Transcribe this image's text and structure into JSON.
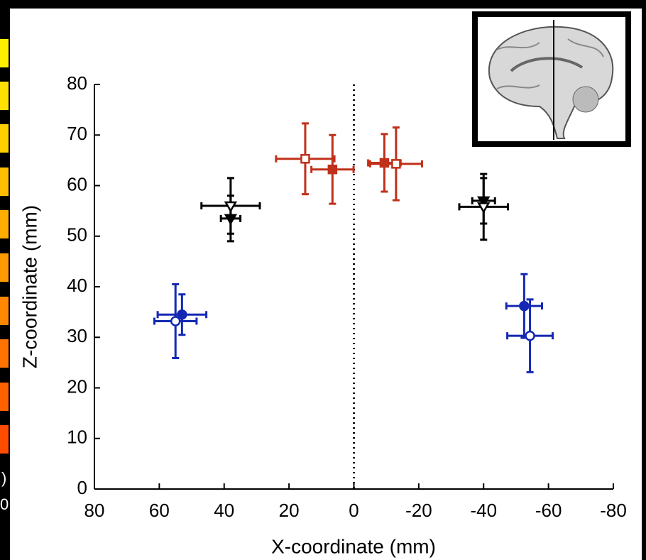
{
  "chart_data": {
    "type": "scatter",
    "x_label": "X-coordinate (mm)",
    "y_label": "Z-coordinate (mm)",
    "xlim": [
      80,
      -80
    ],
    "ylim": [
      0,
      80
    ],
    "xticks": [
      80,
      60,
      40,
      20,
      0,
      -20,
      -40,
      -60,
      -80
    ],
    "yticks": [
      0,
      10,
      20,
      30,
      40,
      50,
      60,
      70,
      80
    ],
    "vline": 0,
    "colorbar_labels": [
      ")",
      "0"
    ],
    "series": [
      {
        "color": "#1428b4",
        "marker": "circle",
        "filled": true,
        "x": [
          53,
          -52.5
        ],
        "values": [
          34.5,
          36.2
        ],
        "xerr": [
          7.5,
          5.5
        ],
        "yerr": [
          4,
          6.3
        ]
      },
      {
        "color": "#1428b4",
        "marker": "circle",
        "filled": false,
        "x": [
          55,
          -54.3
        ],
        "values": [
          33.2,
          30.3
        ],
        "xerr": [
          6.5,
          7
        ],
        "yerr": [
          7.3,
          7.2
        ]
      },
      {
        "color": "#000000",
        "marker": "triangle",
        "filled": true,
        "x": [
          38,
          -40
        ],
        "values": [
          53.5,
          57
        ],
        "xerr": [
          3,
          3.5
        ],
        "yerr": [
          4.5,
          4.5
        ]
      },
      {
        "color": "#000000",
        "marker": "triangle",
        "filled": false,
        "x": [
          38,
          -40
        ],
        "values": [
          56,
          55.8
        ],
        "xerr": [
          9,
          7.5
        ],
        "yerr": [
          5.5,
          6.5
        ]
      },
      {
        "color": "#c0301a",
        "marker": "square",
        "filled": true,
        "x": [
          6.6,
          -9.4
        ],
        "values": [
          63.2,
          64.5
        ],
        "xerr": [
          6.5,
          5
        ],
        "yerr": [
          6.8,
          5.7
        ]
      },
      {
        "color": "#c0301a",
        "marker": "square",
        "filled": false,
        "x": [
          15,
          -13
        ],
        "values": [
          65.3,
          64.3
        ],
        "xerr": [
          9,
          8
        ],
        "yerr": [
          7,
          7.2
        ]
      }
    ]
  }
}
